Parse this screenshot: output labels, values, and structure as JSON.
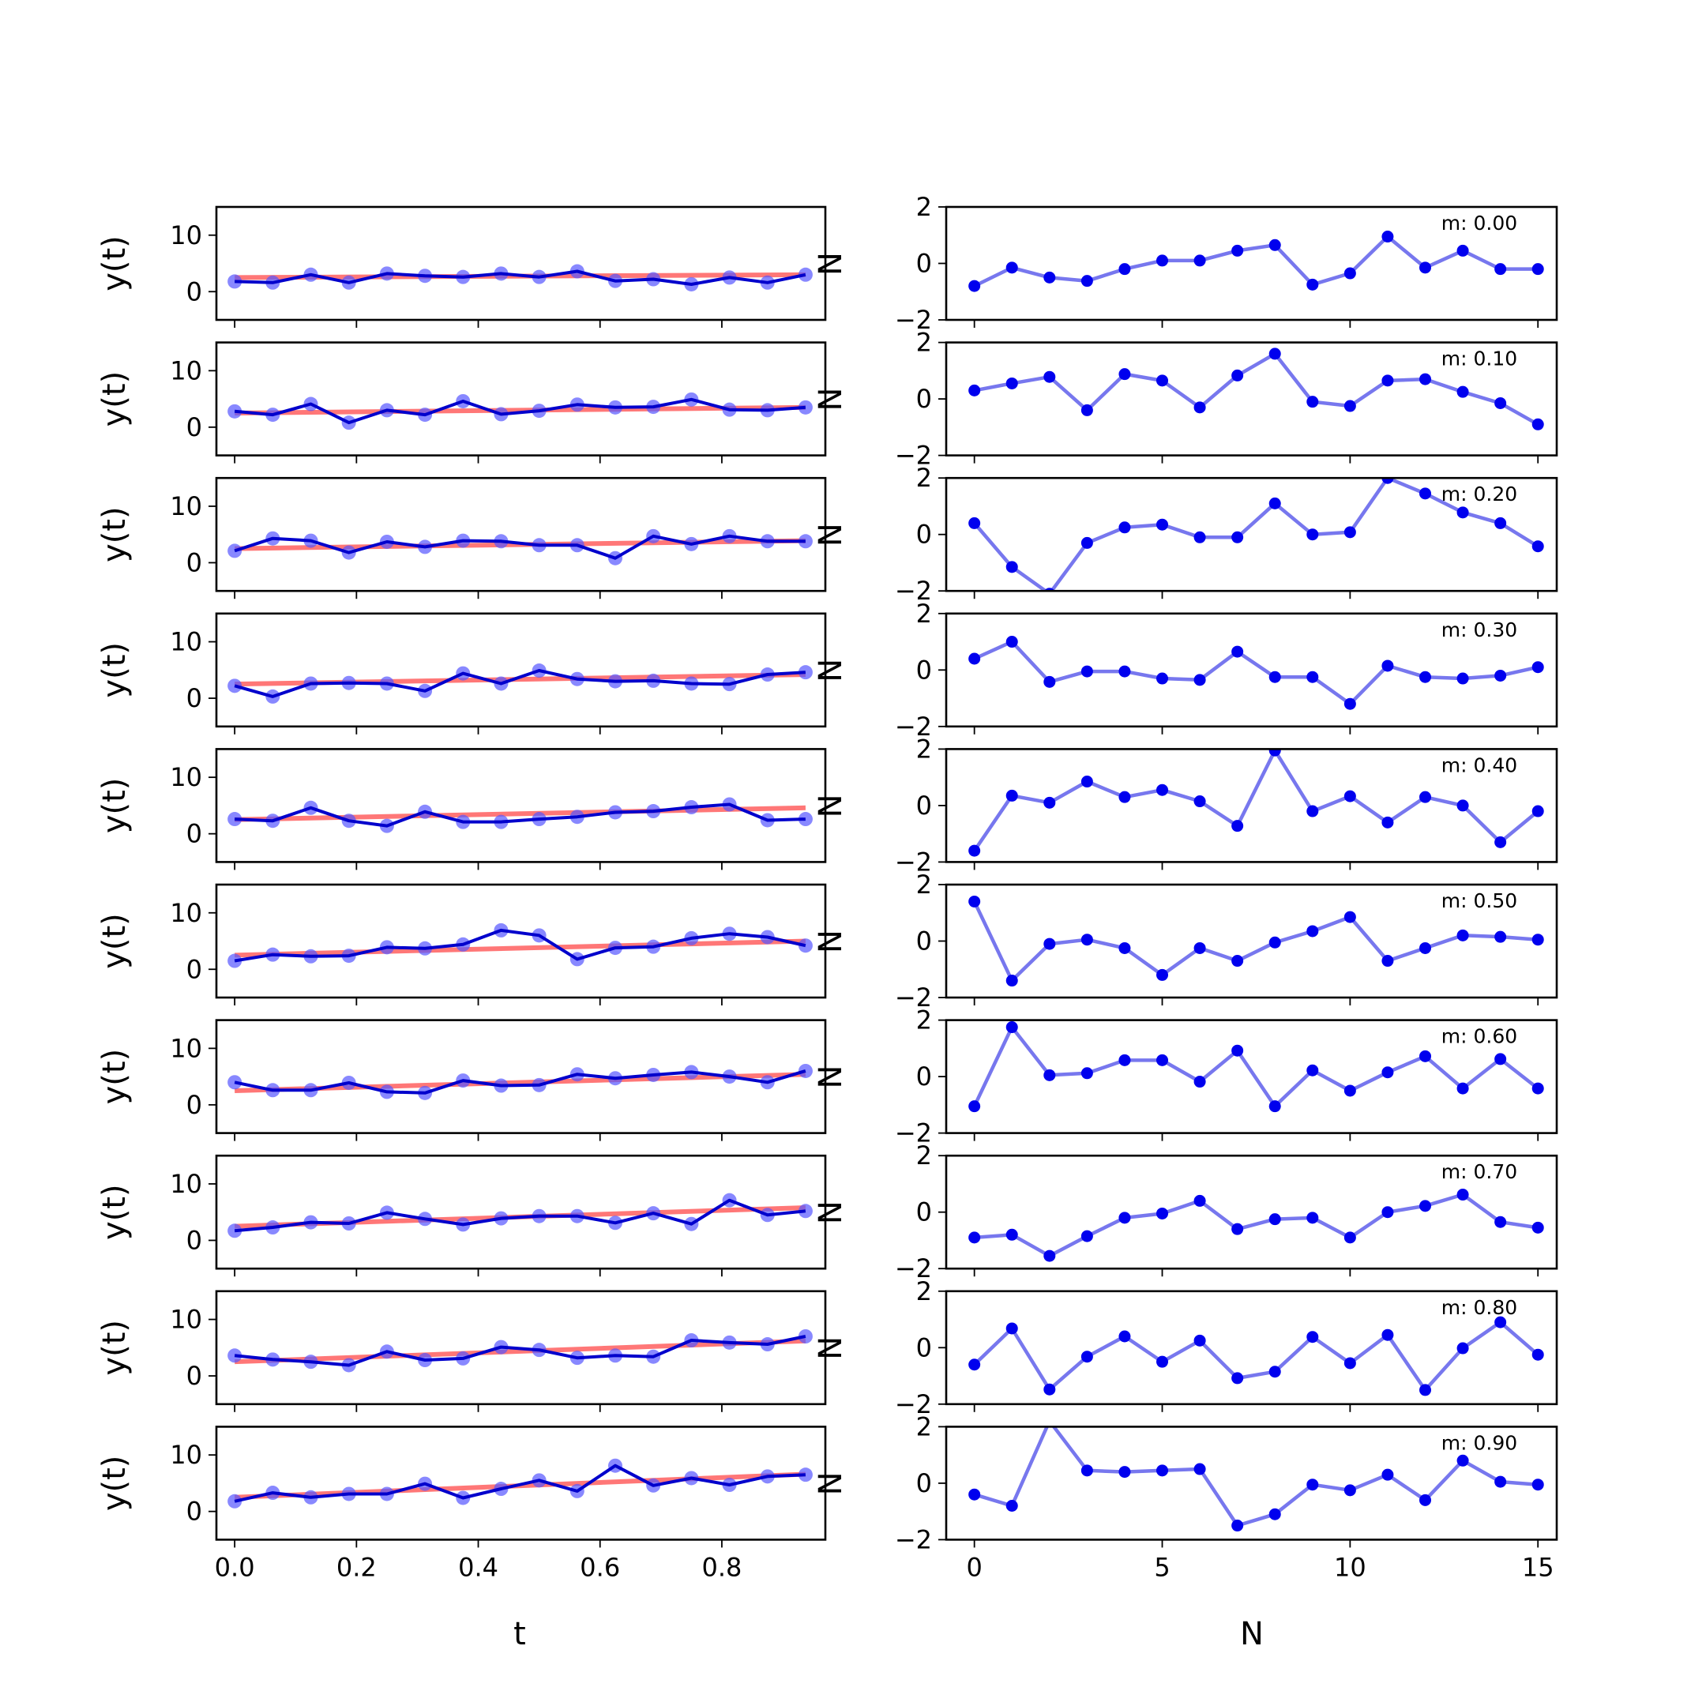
{
  "chart_data": [
    {
      "type": "line",
      "panel": "left",
      "xlabel": "t",
      "ylabel": "y(t)",
      "xlim": [
        -0.03,
        0.97
      ],
      "ylim": [
        -5,
        15
      ],
      "yticks": [
        0,
        10
      ],
      "xticks": [
        0.0,
        0.2,
        0.4,
        0.6,
        0.8
      ],
      "xtick_labels": [
        "0.0",
        "0.2",
        "0.4",
        "0.6",
        "0.8"
      ],
      "clipped_right_label": "N",
      "x": [
        0.0,
        0.0625,
        0.125,
        0.1875,
        0.25,
        0.3125,
        0.375,
        0.4375,
        0.5,
        0.5625,
        0.625,
        0.6875,
        0.75,
        0.8125,
        0.875,
        0.9375
      ],
      "colors": {
        "data": "#0000cc",
        "markers": "#5555ff",
        "trend": "#ff7777"
      },
      "rows": [
        {
          "trend": [
            2.5,
            3.0
          ],
          "series": [
            1.8,
            1.6,
            3.0,
            1.6,
            3.2,
            2.8,
            2.6,
            3.2,
            2.6,
            3.6,
            1.9,
            2.2,
            1.3,
            2.5,
            1.6,
            3.0
          ]
        },
        {
          "trend": [
            2.5,
            3.5
          ],
          "series": [
            2.8,
            2.2,
            4.1,
            0.8,
            3.0,
            2.2,
            4.6,
            2.3,
            2.9,
            4.0,
            3.5,
            3.6,
            4.9,
            3.1,
            3.0,
            3.5
          ]
        },
        {
          "trend": [
            2.5,
            3.9
          ],
          "series": [
            2.1,
            4.3,
            3.9,
            1.8,
            3.7,
            2.8,
            3.9,
            3.8,
            3.1,
            3.1,
            0.8,
            4.7,
            3.3,
            4.7,
            3.8,
            3.8
          ]
        },
        {
          "trend": [
            2.5,
            4.2
          ],
          "series": [
            2.2,
            0.3,
            2.6,
            2.7,
            2.6,
            1.3,
            4.4,
            2.6,
            4.9,
            3.4,
            3.0,
            3.1,
            2.6,
            2.5,
            4.2,
            4.6
          ]
        },
        {
          "trend": [
            2.5,
            4.6
          ],
          "series": [
            2.6,
            2.3,
            4.6,
            2.3,
            1.4,
            3.9,
            2.1,
            2.1,
            2.6,
            3.0,
            3.8,
            4.0,
            4.7,
            5.2,
            2.4,
            2.6
          ]
        },
        {
          "trend": [
            2.5,
            5.0
          ],
          "series": [
            1.5,
            2.6,
            2.3,
            2.4,
            3.9,
            3.7,
            4.4,
            6.9,
            6.0,
            1.8,
            3.8,
            4.0,
            5.5,
            6.3,
            5.7,
            4.2
          ]
        },
        {
          "trend": [
            2.5,
            5.4
          ],
          "series": [
            4.0,
            2.6,
            2.6,
            3.9,
            2.3,
            2.1,
            4.3,
            3.4,
            3.5,
            5.4,
            4.7,
            5.3,
            5.8,
            5.0,
            4.0,
            6.0
          ]
        },
        {
          "trend": [
            2.5,
            5.8
          ],
          "series": [
            1.7,
            2.3,
            3.2,
            3.0,
            4.9,
            3.8,
            2.8,
            3.9,
            4.3,
            4.3,
            3.1,
            4.8,
            2.9,
            7.1,
            4.5,
            5.2
          ]
        },
        {
          "trend": [
            2.5,
            6.2
          ],
          "series": [
            3.6,
            2.9,
            2.5,
            1.9,
            4.3,
            2.8,
            3.1,
            5.1,
            4.6,
            3.2,
            3.6,
            3.4,
            6.3,
            5.9,
            5.6,
            7.0
          ]
        },
        {
          "trend": [
            2.5,
            6.6
          ],
          "series": [
            1.8,
            3.3,
            2.5,
            3.1,
            3.1,
            4.9,
            2.4,
            4.0,
            5.5,
            3.6,
            8.1,
            4.6,
            5.9,
            4.7,
            6.2,
            6.5
          ]
        }
      ]
    },
    {
      "type": "line",
      "panel": "right",
      "xlabel": "N",
      "xlim": [
        -0.75,
        15.5
      ],
      "ylim": [
        -2,
        2
      ],
      "yticks": [
        -2,
        0,
        2
      ],
      "ytick_labels": [
        "−2",
        "0",
        "2"
      ],
      "xticks": [
        0,
        5,
        10,
        15
      ],
      "xtick_labels": [
        "0",
        "5",
        "10",
        "15"
      ],
      "x": [
        0,
        1,
        2,
        3,
        4,
        5,
        6,
        7,
        8,
        9,
        10,
        11,
        12,
        13,
        14,
        15
      ],
      "colors": {
        "line": "#7777ee",
        "markers": "#0000ee"
      },
      "rows": [
        {
          "label": "m: 0.00",
          "series": [
            -0.8,
            -0.15,
            -0.5,
            -0.62,
            -0.2,
            0.1,
            0.1,
            0.45,
            0.65,
            -0.75,
            -0.35,
            0.95,
            -0.15,
            0.45,
            -0.2,
            -0.2
          ]
        },
        {
          "label": "m: 0.10",
          "series": [
            0.3,
            0.55,
            0.78,
            -0.4,
            0.88,
            0.65,
            -0.3,
            0.83,
            1.6,
            -0.1,
            -0.25,
            0.65,
            0.7,
            0.25,
            -0.15,
            -0.9
          ]
        },
        {
          "label": "m: 0.20",
          "series": [
            0.4,
            -1.15,
            -2.1,
            -0.3,
            0.25,
            0.35,
            -0.1,
            -0.1,
            1.1,
            0.0,
            0.08,
            2.0,
            1.45,
            0.78,
            0.4,
            -0.42
          ]
        },
        {
          "label": "m: 0.30",
          "series": [
            0.4,
            1.0,
            -0.42,
            -0.05,
            -0.05,
            -0.3,
            -0.35,
            0.65,
            -0.25,
            -0.25,
            -1.2,
            0.15,
            -0.25,
            -0.3,
            -0.2,
            0.1
          ]
        },
        {
          "label": "m: 0.40",
          "series": [
            -1.6,
            0.35,
            0.1,
            0.85,
            0.3,
            0.55,
            0.15,
            -0.72,
            1.95,
            -0.2,
            0.33,
            -0.6,
            0.3,
            0.0,
            -1.3,
            -0.2
          ]
        },
        {
          "label": "m: 0.50",
          "series": [
            1.4,
            -1.4,
            -0.1,
            0.05,
            -0.25,
            -1.2,
            -0.25,
            -0.7,
            -0.05,
            0.35,
            0.85,
            -0.7,
            -0.25,
            0.2,
            0.15,
            0.05
          ]
        },
        {
          "label": "m: 0.60",
          "series": [
            -1.05,
            1.75,
            0.05,
            0.12,
            0.58,
            0.58,
            -0.18,
            0.92,
            -1.05,
            0.22,
            -0.5,
            0.15,
            0.72,
            -0.42,
            0.62,
            -0.42
          ]
        },
        {
          "label": "m: 0.70",
          "series": [
            -0.9,
            -0.8,
            -1.55,
            -0.85,
            -0.2,
            -0.05,
            0.4,
            -0.6,
            -0.25,
            -0.2,
            -0.9,
            0.0,
            0.22,
            0.62,
            -0.35,
            -0.55
          ]
        },
        {
          "label": "m: 0.80",
          "series": [
            -0.6,
            0.68,
            -1.48,
            -0.32,
            0.4,
            -0.5,
            0.25,
            -1.08,
            -0.85,
            0.38,
            -0.55,
            0.45,
            -1.5,
            -0.02,
            0.9,
            -0.25
          ]
        },
        {
          "label": "m: 0.90",
          "series": [
            -0.4,
            -0.8,
            2.2,
            0.45,
            0.4,
            0.45,
            0.5,
            -1.5,
            -1.1,
            -0.05,
            -0.25,
            0.3,
            -0.6,
            0.8,
            0.05,
            -0.05
          ]
        }
      ]
    }
  ]
}
